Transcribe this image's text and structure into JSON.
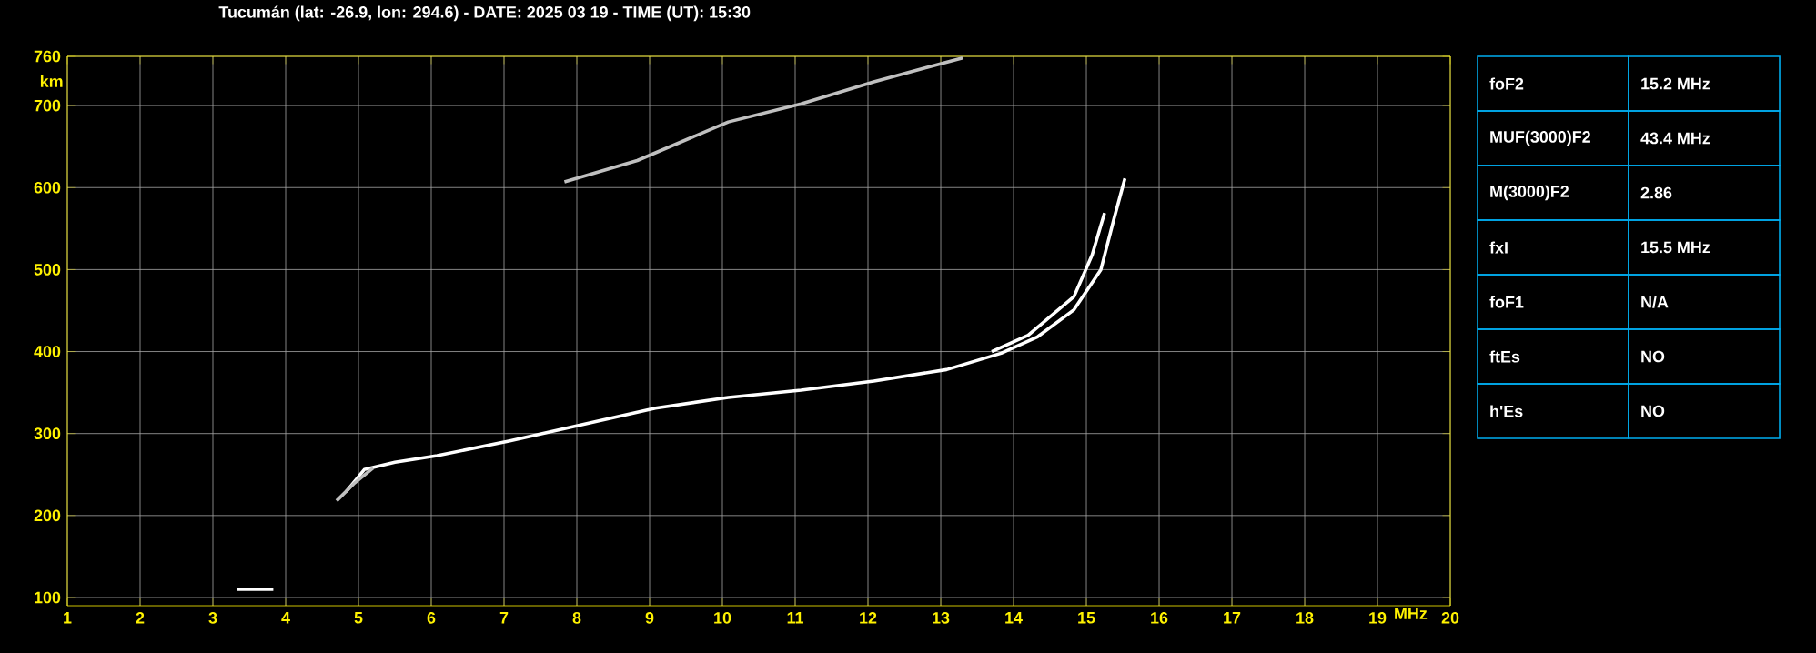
{
  "chart_data": [
    {
      "type": "line",
      "title": "Tucumán (lat: -26.9, lon: 294.6) - DATE: 2025 03 19 - TIME (UT): 15:30",
      "xlabel": "MHz",
      "ylabel": "km",
      "xlim": [
        1,
        20
      ],
      "ylim": [
        90,
        760
      ],
      "xticks": [
        1,
        2,
        3,
        4,
        5,
        6,
        7,
        8,
        9,
        10,
        11,
        12,
        13,
        14,
        15,
        16,
        17,
        18,
        19,
        20
      ],
      "yticks": [
        100,
        200,
        300,
        400,
        500,
        600,
        700,
        760
      ],
      "grid": true,
      "marker": "none",
      "line_style": "solid",
      "series": [
        {
          "color": "#ffffff",
          "x": [
            4.83,
            5.08,
            5.5,
            6.08,
            7.08,
            8.08,
            9.08,
            10.08,
            11.08,
            12.08,
            13.08,
            13.83,
            14.33,
            14.83,
            15.2,
            15.38,
            15.53
          ],
          "values": [
            229,
            256,
            265,
            273,
            291,
            311,
            331,
            344,
            353,
            364,
            378,
            398,
            418,
            451,
            500,
            562,
            611
          ]
        },
        {
          "color": "#ffffff",
          "x": [
            13.7,
            14.2,
            14.83,
            15.08,
            15.25
          ],
          "values": [
            400,
            420,
            467,
            518,
            569
          ]
        },
        {
          "color": "#c0c0c0",
          "x": [
            4.7,
            4.95,
            5.2
          ],
          "values": [
            218,
            240,
            258
          ]
        },
        {
          "color": "#c0c0c0",
          "x": [
            7.83,
            8.83,
            10.08,
            11.08,
            12.08,
            12.83,
            13.3
          ],
          "values": [
            607,
            633,
            680,
            702,
            729,
            747,
            758
          ]
        },
        {
          "color": "#ffffff",
          "x": [
            3.33,
            3.83
          ],
          "values": [
            110,
            110
          ]
        }
      ]
    },
    {
      "type": "other",
      "annotations": [
        "foF2",
        "15.2 MHz",
        "MUF(3000)F2",
        "43.4 MHz",
        "M(3000)F2",
        "2.86",
        "fxI",
        "15.5 MHz",
        "foF1",
        "N/A",
        "ftEs",
        "NO",
        "h'Es",
        "NO"
      ]
    }
  ]
}
